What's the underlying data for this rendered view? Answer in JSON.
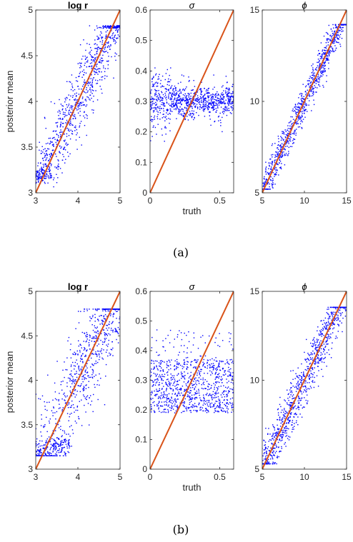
{
  "colors": {
    "scatter": "#0000ff",
    "identity_line": "#d95319",
    "axes": "#262626"
  },
  "ylabel": "posterior mean",
  "xlabel": "truth",
  "captions": [
    "(a)",
    "(b)"
  ],
  "chart_data": [
    {
      "panel": "a",
      "type": "scatter",
      "title": "log r",
      "ylabel": "posterior mean",
      "xlabel": "",
      "xlim": [
        3,
        5
      ],
      "ylim": [
        3,
        5
      ],
      "xticks": [
        "3",
        "4",
        "5"
      ],
      "yticks": [
        "3",
        "3.5",
        "4",
        "4.5",
        "5"
      ],
      "identity_line": [
        [
          3,
          3
        ],
        [
          5,
          5
        ]
      ],
      "series": [
        {
          "points_approx": 900,
          "pattern": "y ≈ x with spread about 0.2, floor near 3.1–3.3 at low x, cap near 4.8 at high x"
        }
      ],
      "grid": false,
      "legend": "none"
    },
    {
      "panel": "a",
      "type": "scatter",
      "title": "σ",
      "ylabel": "",
      "xlabel": "truth",
      "xlim": [
        0,
        0.6
      ],
      "ylim": [
        0,
        0.6
      ],
      "xticks": [
        "0",
        "0.5"
      ],
      "yticks": [
        "0",
        "0.1",
        "0.2",
        "0.3",
        "0.4",
        "0.5",
        "0.6"
      ],
      "identity_line": [
        [
          0,
          0
        ],
        [
          0.6,
          0.6
        ]
      ],
      "series": [
        {
          "points_approx": 900,
          "pattern": "flat band around y ≈ 0.30 (0.25–0.35), more spread at small x"
        }
      ],
      "grid": false,
      "legend": "none"
    },
    {
      "panel": "a",
      "type": "scatter",
      "title": "ϕ",
      "ylabel": "",
      "xlabel": "",
      "xlim": [
        5,
        15
      ],
      "ylim": [
        5,
        15
      ],
      "xticks": [
        "5",
        "10",
        "15"
      ],
      "yticks": [
        "5",
        "10",
        "15"
      ],
      "identity_line": [
        [
          5,
          5
        ],
        [
          15,
          15
        ]
      ],
      "series": [
        {
          "points_approx": 900,
          "pattern": "tight y ≈ x, cap near 14 at high x"
        }
      ],
      "grid": false,
      "legend": "none"
    },
    {
      "panel": "b",
      "type": "scatter",
      "title": "log r",
      "ylabel": "posterior mean",
      "xlabel": "",
      "xlim": [
        3,
        5
      ],
      "ylim": [
        3,
        5
      ],
      "xticks": [
        "3",
        "4",
        "5"
      ],
      "yticks": [
        "3",
        "3.5",
        "4",
        "4.5",
        "5"
      ],
      "identity_line": [
        [
          3,
          3
        ],
        [
          5,
          5
        ]
      ],
      "series": [
        {
          "points_approx": 900,
          "pattern": "wide spread around y ≈ x, dense cluster near 3.2–3.3 for x < 3.8, cap near 4.7"
        }
      ],
      "grid": false,
      "legend": "none"
    },
    {
      "panel": "b",
      "type": "scatter",
      "title": "σ",
      "ylabel": "",
      "xlabel": "truth",
      "xlim": [
        0,
        0.6
      ],
      "ylim": [
        0,
        0.6
      ],
      "xticks": [
        "0",
        "0.5"
      ],
      "yticks": [
        "0",
        "0.1",
        "0.2",
        "0.3",
        "0.4",
        "0.5",
        "0.6"
      ],
      "identity_line": [
        [
          0,
          0
        ],
        [
          0.6,
          0.6
        ]
      ],
      "series": [
        {
          "points_approx": 900,
          "pattern": "wide flat band y ≈ 0.19–0.37 across x, sparse points up to 0.47"
        }
      ],
      "grid": false,
      "legend": "none"
    },
    {
      "panel": "b",
      "type": "scatter",
      "title": "ϕ",
      "ylabel": "",
      "xlabel": "",
      "xlim": [
        5,
        15
      ],
      "ylim": [
        5,
        15
      ],
      "xticks": [
        "5",
        "10",
        "15"
      ],
      "yticks": [
        "5",
        "10",
        "15"
      ],
      "identity_line": [
        [
          5,
          5
        ],
        [
          15,
          15
        ]
      ],
      "series": [
        {
          "points_approx": 900,
          "pattern": "y ≈ x with moderate spread, cap near 14 at high x"
        }
      ],
      "grid": false,
      "legend": "none"
    }
  ]
}
